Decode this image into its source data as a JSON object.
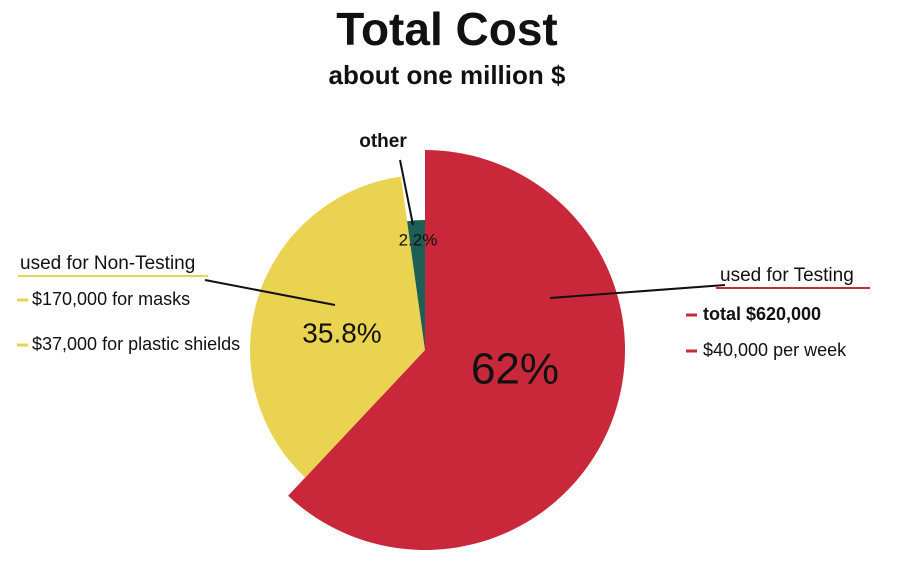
{
  "chart_data": {
    "type": "pie",
    "title": "Total Cost",
    "subtitle": "about one million $",
    "categories": [
      "used for Testing",
      "used for Non-Testing",
      "other"
    ],
    "values": [
      62,
      35.8,
      2.2
    ],
    "value_labels": [
      "62%",
      "35.8%",
      "2.2%"
    ],
    "colors": [
      "#c8283a",
      "#e9d351",
      "#1c5f55"
    ],
    "annotations": {
      "testing": [
        "total $620,000",
        "$40,000 per week"
      ],
      "non_testing": [
        "$170,000 for masks",
        "$37,000 for plastic shields"
      ]
    }
  }
}
